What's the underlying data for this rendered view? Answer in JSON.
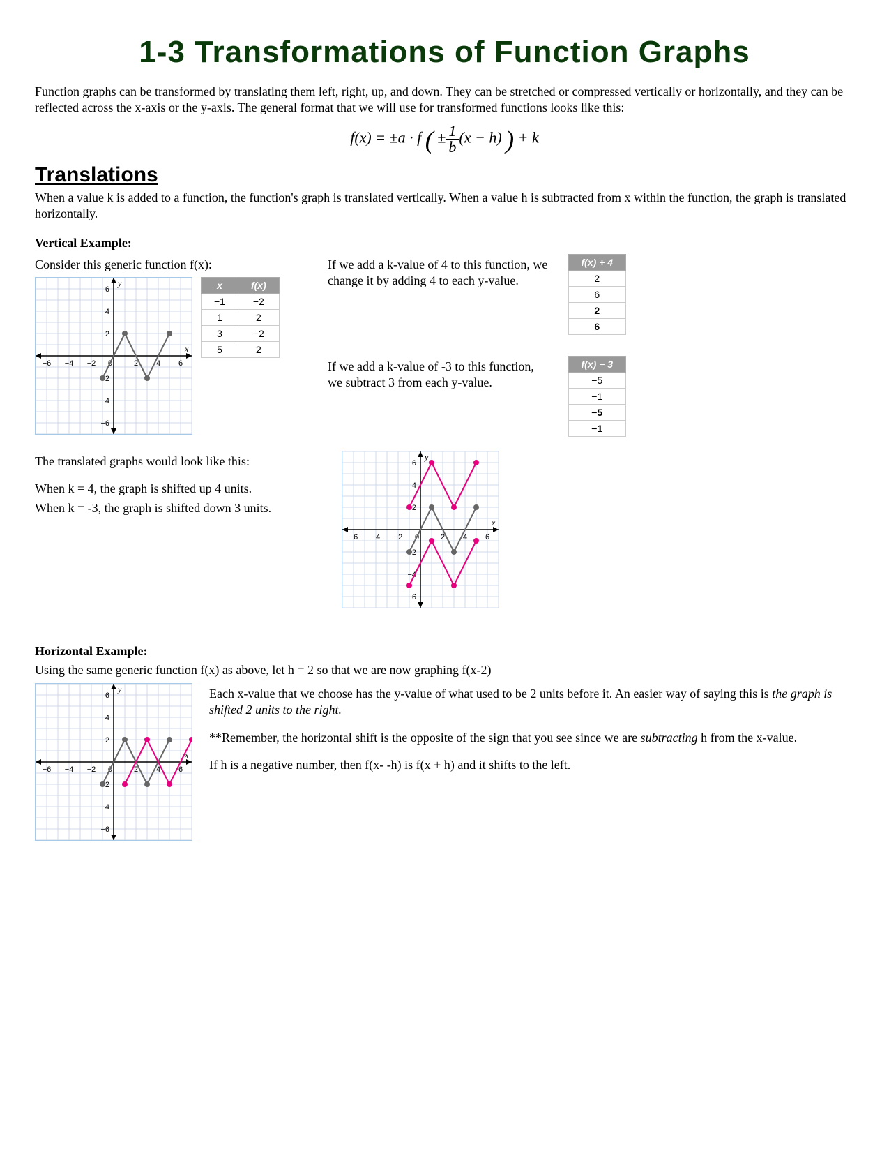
{
  "title": "1-3 Transformations of Function Graphs",
  "intro": "Function graphs can be transformed by translating them left, right, up, and down. They can be stretched or compressed vertically or horizontally, and they can be reflected across the x-axis or the y-axis. The general format that we will use for transformed functions looks like this:",
  "formula_html": "f(x) = ±a · f ( ±(1/b)(x − h) ) + k",
  "translations": {
    "heading": "Translations",
    "text": "When a value k is added to a function, the function's graph is translated vertically.  When a value h is subtracted from x within the function, the graph is translated horizontally."
  },
  "vertical": {
    "heading": "Vertical Example:",
    "consider": "Consider this generic function f(x):",
    "table_xy": {
      "headers": [
        "x",
        "f(x)"
      ],
      "rows": [
        [
          "−1",
          "−2"
        ],
        [
          "1",
          "2"
        ],
        [
          "3",
          "−2"
        ],
        [
          "5",
          "2"
        ]
      ]
    },
    "k4_text": "If we add a k-value of 4 to this function, we change it by adding 4 to each y-value.",
    "table_k4": {
      "header": "f(x) + 4",
      "rows": [
        "2",
        "6",
        "2",
        "6"
      ]
    },
    "km3_text": "If we add a k-value of -3 to this function, we subtract 3 from each y-value.",
    "table_km3": {
      "header": "f(x) − 3",
      "rows": [
        "−5",
        "−1",
        "−5",
        "−1"
      ]
    },
    "translated_intro": "The translated graphs would look like this:",
    "k4_explain": "When k = 4, the graph is shifted up 4 units.",
    "km3_explain": "When k = -3, the graph is shifted down 3 units."
  },
  "horizontal": {
    "heading": "Horizontal Example:",
    "intro": "Using the same generic function f(x) as above, let h = 2 so that we are now graphing f(x-2)",
    "p1a": "Each x-value that we choose has the y-value of what used to be 2 units before it. An easier way of saying this is ",
    "p1b": "the graph is shifted 2 units to the right.",
    "p2a": "**Remember, the horizontal shift is the opposite of the sign that you see since we are ",
    "p2b": "subtracting",
    "p2c": " h from the x-value.",
    "p3": "If h is a negative number, then f(x- -h) is f(x + h) and it shifts to the left."
  },
  "graph": {
    "xmin": -7,
    "xmax": 7,
    "ymin": -7,
    "ymax": 7,
    "grid_color": "#d0d8e8",
    "axis_color": "#000",
    "original_color": "#666",
    "shift_color": "#e6007e",
    "point_r": 4,
    "original_pts": [
      [
        -1,
        -2
      ],
      [
        1,
        2
      ],
      [
        3,
        -2
      ],
      [
        5,
        2
      ]
    ],
    "k4_pts": [
      [
        -1,
        2
      ],
      [
        1,
        6
      ],
      [
        3,
        2
      ],
      [
        5,
        6
      ]
    ],
    "km3_pts": [
      [
        -1,
        -5
      ],
      [
        1,
        -1
      ],
      [
        3,
        -5
      ],
      [
        5,
        -1
      ]
    ],
    "h2_pts": [
      [
        1,
        -2
      ],
      [
        3,
        2
      ],
      [
        5,
        -2
      ],
      [
        7,
        2
      ]
    ],
    "cell": 16
  }
}
